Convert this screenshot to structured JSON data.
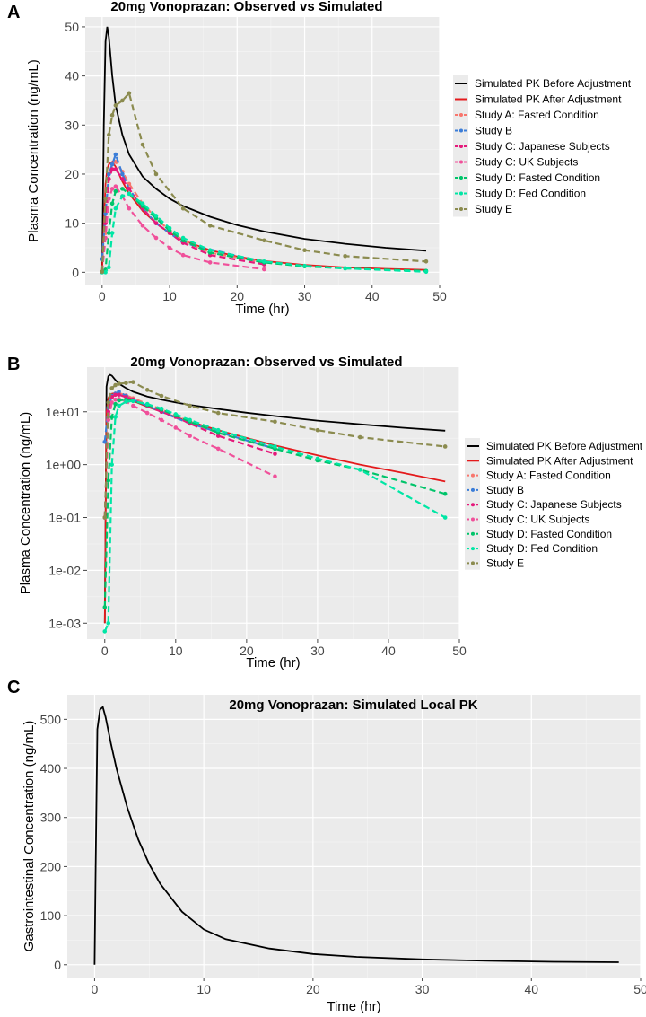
{
  "chart_data": [
    {
      "panel_label": "A",
      "type": "line",
      "title": "20mg Vonoprazan: Observed vs Simulated",
      "xlabel": "Time (hr)",
      "ylabel": "Plasma Concentration (ng/mL)",
      "xlim": [
        -2.5,
        50
      ],
      "ylim": [
        -2.5,
        52
      ],
      "y_scale": "linear",
      "xticks": [
        0,
        10,
        20,
        30,
        40,
        50
      ],
      "xtick_labels": [
        "0",
        "10",
        "20",
        "30",
        "40",
        "50"
      ],
      "yticks": [
        0,
        10,
        20,
        30,
        40,
        50
      ],
      "ytick_labels": [
        "0",
        "10",
        "20",
        "30",
        "40",
        "50"
      ],
      "legend_position": "right",
      "series": [
        {
          "name": "Simulated PK Before Adjustment",
          "color": "#000000",
          "style": "solid",
          "x": [
            0,
            0.25,
            0.5,
            0.75,
            1,
            1.5,
            2,
            3,
            4,
            6,
            8,
            10,
            12,
            16,
            20,
            24,
            30,
            36,
            42,
            48
          ],
          "y": [
            0,
            30,
            47,
            50,
            48,
            40,
            34,
            28,
            24,
            19.5,
            17,
            15,
            13.5,
            11.3,
            9.6,
            8.3,
            6.8,
            5.8,
            5,
            4.4
          ]
        },
        {
          "name": "Simulated PK After Adjustment",
          "color": "#e41a1c",
          "style": "solid",
          "x": [
            0,
            0.25,
            0.5,
            0.75,
            1,
            1.5,
            2,
            3,
            4,
            6,
            8,
            10,
            12,
            16,
            20,
            24,
            30,
            36,
            42,
            48
          ],
          "y": [
            0,
            10,
            18,
            21,
            22,
            22.5,
            21.5,
            18.5,
            16,
            12.5,
            10,
            8,
            6.5,
            4.5,
            3.2,
            2.3,
            1.5,
            1,
            0.7,
            0.48
          ]
        },
        {
          "name": "Study A: Fasted Condition",
          "color": "#f8766d",
          "style": "dashed",
          "markers": true,
          "x": [
            0,
            0.5,
            1,
            1.5,
            2,
            3,
            4,
            6,
            8,
            10,
            12,
            16,
            24
          ],
          "y": [
            0.1,
            8,
            19,
            22,
            22.5,
            20.5,
            18,
            14,
            11,
            8.5,
            6.5,
            4,
            2
          ]
        },
        {
          "name": "Study B",
          "color": "#3b7dd8",
          "style": "dashed",
          "markers": true,
          "x": [
            0,
            0.5,
            1,
            1.5,
            2,
            3,
            4,
            6,
            8,
            12,
            24
          ],
          "y": [
            2.7,
            12,
            20,
            22,
            24,
            20,
            17,
            13,
            10,
            6,
            2
          ]
        },
        {
          "name": "Study C: Japanese Subjects",
          "color": "#e5197b",
          "style": "dashed",
          "markers": true,
          "x": [
            0,
            0.5,
            1,
            1.5,
            2,
            3,
            4,
            6,
            8,
            10,
            12,
            16,
            24
          ],
          "y": [
            0.1,
            10,
            19,
            21,
            21,
            19,
            17,
            13,
            10,
            8,
            6,
            3.5,
            1.6
          ]
        },
        {
          "name": "Study C: UK Subjects",
          "color": "#f0509a",
          "style": "dashed",
          "markers": true,
          "x": [
            0,
            0.5,
            1,
            1.5,
            2,
            3,
            4,
            6,
            8,
            10,
            12,
            16,
            24
          ],
          "y": [
            0.1,
            7,
            15,
            17,
            17.5,
            15.5,
            13,
            9.5,
            7,
            5,
            3.5,
            2,
            0.6
          ]
        },
        {
          "name": "Study D: Fasted Condition",
          "color": "#00c46a",
          "style": "dashed",
          "markers": true,
          "x": [
            0,
            0.5,
            1,
            1.5,
            2,
            3,
            4,
            6,
            8,
            10,
            12,
            16,
            24,
            30,
            36,
            48
          ],
          "y": [
            0,
            0.5,
            8,
            14,
            16.5,
            17,
            16,
            13.5,
            11,
            8.5,
            6.5,
            4,
            2,
            1.2,
            0.8,
            0.28
          ]
        },
        {
          "name": "Study D: Fed Condition",
          "color": "#00e6a5",
          "style": "dashed",
          "markers": true,
          "x": [
            0,
            0.5,
            1,
            1.5,
            2,
            3,
            4,
            6,
            8,
            10,
            12,
            16,
            24,
            30,
            36,
            48
          ],
          "y": [
            0,
            0.001,
            1,
            8,
            13,
            15.5,
            16,
            14,
            11.5,
            9,
            7,
            4.5,
            2.2,
            1.3,
            0.8,
            0.1
          ]
        },
        {
          "name": "Study E",
          "color": "#8b8b4f",
          "style": "dashed",
          "markers": true,
          "x": [
            0,
            0.5,
            1,
            1.5,
            2,
            3,
            4,
            6,
            8,
            12,
            16,
            24,
            30,
            36,
            48
          ],
          "y": [
            0.1,
            15,
            28,
            32,
            34,
            35,
            36.5,
            26,
            20,
            13,
            9.5,
            6.5,
            4.5,
            3.3,
            2.2
          ]
        }
      ]
    },
    {
      "panel_label": "B",
      "type": "line",
      "title": "20mg Vonoprazan: Observed vs Simulated",
      "xlabel": "Time (hr)",
      "ylabel": "Plasma Concentration (ng/mL)",
      "xlim": [
        -2.5,
        50
      ],
      "ylim": [
        0.0005,
        70
      ],
      "y_scale": "log10",
      "xticks": [
        0,
        10,
        20,
        30,
        40,
        50
      ],
      "xtick_labels": [
        "0",
        "10",
        "20",
        "30",
        "40",
        "50"
      ],
      "yticks": [
        0.001,
        0.01,
        0.1,
        1,
        10
      ],
      "ytick_labels": [
        "1e-03",
        "1e-02",
        "1e-01",
        "1e+00",
        "1e+01"
      ],
      "legend_position": "right",
      "series": [
        {
          "name": "Simulated PK Before Adjustment",
          "color": "#000000",
          "style": "solid",
          "x": [
            0,
            0.25,
            0.5,
            0.75,
            1,
            1.5,
            2,
            3,
            4,
            6,
            8,
            10,
            12,
            16,
            20,
            24,
            30,
            36,
            42,
            48
          ],
          "y": [
            0.001,
            30,
            47,
            50,
            48,
            40,
            34,
            28,
            24,
            19.5,
            17,
            15,
            13.5,
            11.3,
            9.6,
            8.3,
            6.8,
            5.8,
            5,
            4.4
          ]
        },
        {
          "name": "Simulated PK After Adjustment",
          "color": "#e41a1c",
          "style": "solid",
          "x": [
            0,
            0.25,
            0.5,
            0.75,
            1,
            1.5,
            2,
            3,
            4,
            6,
            8,
            10,
            12,
            16,
            20,
            24,
            30,
            36,
            42,
            48
          ],
          "y": [
            0.001,
            10,
            18,
            21,
            22,
            22.5,
            21.5,
            18.5,
            16,
            12.5,
            10,
            8,
            6.5,
            4.5,
            3.2,
            2.3,
            1.5,
            1,
            0.7,
            0.48
          ]
        },
        {
          "name": "Study A: Fasted Condition",
          "color": "#f8766d",
          "style": "dashed",
          "markers": true,
          "x": [
            0,
            0.5,
            1,
            1.5,
            2,
            3,
            4,
            6,
            8,
            10,
            12,
            16,
            24
          ],
          "y": [
            0.1,
            8,
            19,
            22,
            22.5,
            20.5,
            18,
            14,
            11,
            8.5,
            6.5,
            4,
            2
          ]
        },
        {
          "name": "Study B",
          "color": "#3b7dd8",
          "style": "dashed",
          "markers": true,
          "x": [
            0,
            0.5,
            1,
            1.5,
            2,
            3,
            4,
            6,
            8,
            12,
            24
          ],
          "y": [
            2.7,
            12,
            20,
            22,
            24,
            20,
            17,
            13,
            10,
            6,
            2
          ]
        },
        {
          "name": "Study C: Japanese Subjects",
          "color": "#e5197b",
          "style": "dashed",
          "markers": true,
          "x": [
            0,
            0.5,
            1,
            1.5,
            2,
            3,
            4,
            6,
            8,
            10,
            12,
            16,
            24
          ],
          "y": [
            0.1,
            10,
            19,
            21,
            21,
            19,
            17,
            13,
            10,
            8,
            6,
            3.5,
            1.6
          ]
        },
        {
          "name": "Study C: UK Subjects",
          "color": "#f0509a",
          "style": "dashed",
          "markers": true,
          "x": [
            0,
            0.5,
            1,
            1.5,
            2,
            3,
            4,
            6,
            8,
            10,
            12,
            16,
            24
          ],
          "y": [
            0.1,
            7,
            15,
            17,
            17.5,
            15.5,
            13,
            9.5,
            7,
            5,
            3.5,
            2,
            0.6
          ]
        },
        {
          "name": "Study D: Fasted Condition",
          "color": "#00c46a",
          "style": "dashed",
          "markers": true,
          "x": [
            0,
            0.5,
            1,
            1.5,
            2,
            3,
            4,
            6,
            8,
            10,
            12,
            16,
            24,
            30,
            36,
            48
          ],
          "y": [
            0.002,
            0.5,
            8,
            14,
            16.5,
            17,
            16,
            13.5,
            11,
            8.5,
            6.5,
            4,
            2,
            1.2,
            0.8,
            0.28
          ]
        },
        {
          "name": "Study D: Fed Condition",
          "color": "#00e6a5",
          "style": "dashed",
          "markers": true,
          "x": [
            0,
            0.5,
            1,
            1.5,
            2,
            3,
            4,
            6,
            8,
            10,
            12,
            16,
            24,
            30,
            36,
            48
          ],
          "y": [
            0.0007,
            0.001,
            1,
            8,
            13,
            15.5,
            16,
            14,
            11.5,
            9,
            7,
            4.5,
            2.2,
            1.3,
            0.8,
            0.1
          ]
        },
        {
          "name": "Study E",
          "color": "#8b8b4f",
          "style": "dashed",
          "markers": true,
          "x": [
            0,
            0.5,
            1,
            1.5,
            2,
            3,
            4,
            6,
            8,
            12,
            16,
            24,
            30,
            36,
            48
          ],
          "y": [
            0.1,
            15,
            28,
            32,
            34,
            35,
            36.5,
            26,
            20,
            13,
            9.5,
            6.5,
            4.5,
            3.3,
            2.2
          ]
        }
      ]
    },
    {
      "panel_label": "C",
      "type": "line",
      "title": "20mg Vonoprazan: Simulated Local PK",
      "xlabel": "Time (hr)",
      "ylabel": "Gastrointestinal Concentration (ng/mL)",
      "xlim": [
        -2.5,
        50
      ],
      "ylim": [
        -26,
        550
      ],
      "y_scale": "linear",
      "xticks": [
        0,
        10,
        20,
        30,
        40,
        50
      ],
      "xtick_labels": [
        "0",
        "10",
        "20",
        "30",
        "40",
        "50"
      ],
      "yticks": [
        0,
        100,
        200,
        300,
        400,
        500
      ],
      "ytick_labels": [
        "0",
        "100",
        "200",
        "300",
        "400",
        "500"
      ],
      "series": [
        {
          "name": "Simulated Local PK",
          "color": "#000000",
          "style": "solid",
          "x": [
            0,
            0.1,
            0.25,
            0.5,
            0.75,
            1,
            1.5,
            2,
            3,
            4,
            5,
            6,
            8,
            10,
            12,
            16,
            20,
            24,
            30,
            36,
            42,
            48
          ],
          "y": [
            0,
            200,
            480,
            520,
            525,
            505,
            450,
            400,
            320,
            255,
            205,
            165,
            108,
            72,
            52,
            33,
            22,
            16,
            11,
            8,
            6,
            5
          ]
        }
      ]
    }
  ]
}
